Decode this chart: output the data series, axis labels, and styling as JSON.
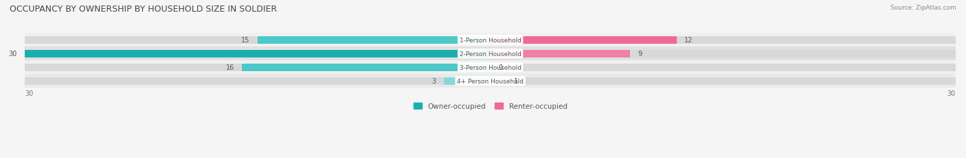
{
  "title": "OCCUPANCY BY OWNERSHIP BY HOUSEHOLD SIZE IN SOLDIER",
  "source": "Source: ZipAtlas.com",
  "categories": [
    "1-Person Household",
    "2-Person Household",
    "3-Person Household",
    "4+ Person Household"
  ],
  "owner_values": [
    15,
    30,
    16,
    3
  ],
  "renter_values": [
    12,
    9,
    0,
    1
  ],
  "owner_colors": [
    "#4cc8c8",
    "#1aafaf",
    "#4cc8c8",
    "#88d8d8"
  ],
  "renter_colors": [
    "#f06898",
    "#f080a8",
    "#f8c0d4",
    "#f8b0c8"
  ],
  "row_bg_colors": [
    "#f0f0f0",
    "#e0e0e0",
    "#f0f0f0",
    "#eaeaea"
  ],
  "bar_bg_color": "#d8d8d8",
  "xlim": 30,
  "label_fontsize": 7,
  "title_fontsize": 9,
  "bar_height": 0.55,
  "figsize": [
    14.06,
    2.32
  ],
  "dpi": 100
}
